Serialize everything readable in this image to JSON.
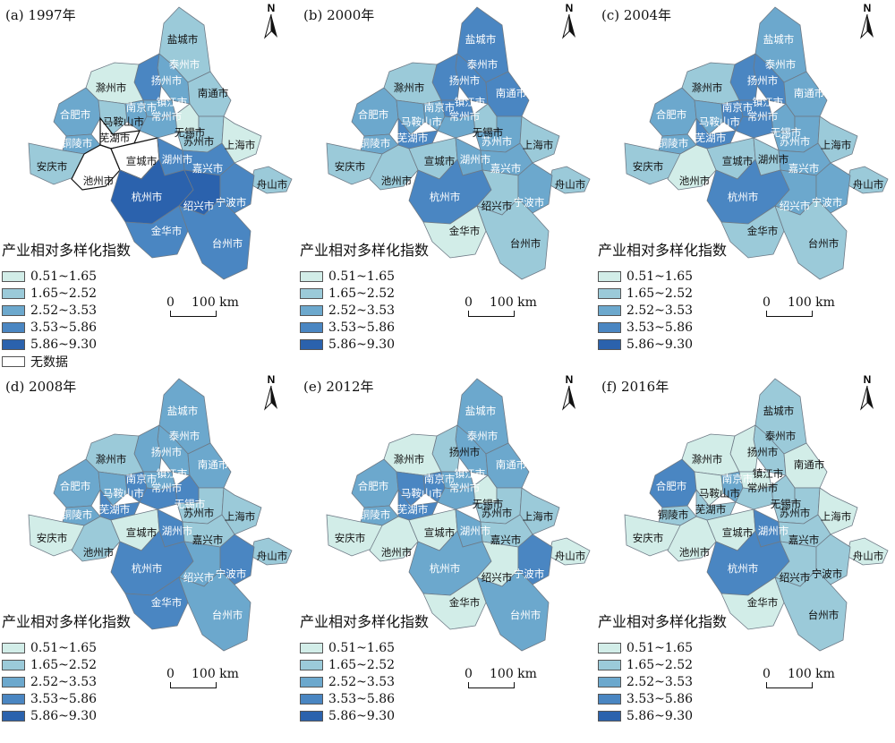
{
  "legend": {
    "title": "产业相对多样化指数",
    "classes": [
      {
        "label": "0.51~1.65",
        "color": "#d2ede8"
      },
      {
        "label": "1.65~2.52",
        "color": "#9bcad9"
      },
      {
        "label": "2.52~3.53",
        "color": "#6ca8cd"
      },
      {
        "label": "3.53~5.86",
        "color": "#4a86c2"
      },
      {
        "label": "5.86~9.30",
        "color": "#2b62ad"
      }
    ],
    "nodata_label": "无数据",
    "nodata_color": "#ffffff"
  },
  "scale": {
    "zero": "0",
    "label": "100 km"
  },
  "north_label": "N",
  "panels": [
    {
      "title": "(a) 1997年",
      "show_nodata": true,
      "classes": {
        "yancheng": 1,
        "taizhou_js": 2,
        "yangzhou": 3,
        "chuzhou": 0,
        "nantong": 1,
        "hefei": 2,
        "maanshan": 1,
        "nanjing": 2,
        "zhenjiang": 2,
        "changzhou": 2,
        "wuxi": 0,
        "tongling": 2,
        "wuhu": -1,
        "suzhou": 1,
        "shanghai": 0,
        "anqing": 1,
        "chizhou": -1,
        "xuancheng": -1,
        "huzhou": 3,
        "jiaxing": 3,
        "zhoushan": 1,
        "hangzhou": 4,
        "shaoxing": 4,
        "ningbo": 3,
        "jinhua": 3,
        "taizhou_zj": 3
      }
    },
    {
      "title": "(b) 2000年",
      "show_nodata": false,
      "classes": {
        "yancheng": 3,
        "taizhou_js": 3,
        "yangzhou": 3,
        "chuzhou": 1,
        "nantong": 3,
        "hefei": 2,
        "maanshan": 2,
        "nanjing": 2,
        "zhenjiang": 3,
        "changzhou": 2,
        "wuxi": 1,
        "tongling": 2,
        "wuhu": 3,
        "suzhou": 2,
        "shanghai": 1,
        "anqing": 1,
        "chizhou": 1,
        "xuancheng": 1,
        "huzhou": 2,
        "jiaxing": 2,
        "zhoushan": 1,
        "hangzhou": 3,
        "shaoxing": 1,
        "ningbo": 2,
        "jinhua": 0,
        "taizhou_zj": 1
      }
    },
    {
      "title": "(c) 2004年",
      "show_nodata": false,
      "classes": {
        "yancheng": 2,
        "taizhou_js": 3,
        "yangzhou": 3,
        "chuzhou": 1,
        "nantong": 2,
        "hefei": 2,
        "maanshan": 2,
        "nanjing": 3,
        "zhenjiang": 3,
        "changzhou": 3,
        "wuxi": 2,
        "tongling": 2,
        "wuhu": 3,
        "suzhou": 2,
        "shanghai": 1,
        "anqing": 1,
        "chizhou": 0,
        "xuancheng": 1,
        "huzhou": 1,
        "jiaxing": 2,
        "zhoushan": 1,
        "hangzhou": 3,
        "shaoxing": 2,
        "ningbo": 2,
        "jinhua": 1,
        "taizhou_zj": 1
      }
    },
    {
      "title": "(d) 2008年",
      "show_nodata": false,
      "classes": {
        "yancheng": 2,
        "taizhou_js": 2,
        "yangzhou": 2,
        "chuzhou": 1,
        "nantong": 2,
        "hefei": 2,
        "maanshan": 2,
        "nanjing": 3,
        "zhenjiang": 2,
        "changzhou": 3,
        "wuxi": 3,
        "tongling": 2,
        "wuhu": 3,
        "suzhou": 1,
        "shanghai": 1,
        "anqing": 0,
        "chizhou": 1,
        "xuancheng": 0,
        "huzhou": 3,
        "jiaxing": 1,
        "zhoushan": 1,
        "hangzhou": 3,
        "shaoxing": 2,
        "ningbo": 3,
        "jinhua": 3,
        "taizhou_zj": 2
      }
    },
    {
      "title": "(e) 2012年",
      "show_nodata": false,
      "classes": {
        "yancheng": 2,
        "taizhou_js": 2,
        "yangzhou": 1,
        "chuzhou": 0,
        "nantong": 2,
        "hefei": 2,
        "maanshan": 3,
        "nanjing": 3,
        "zhenjiang": 2,
        "changzhou": 2,
        "wuxi": 0,
        "tongling": 2,
        "wuhu": 3,
        "suzhou": 1,
        "shanghai": 1,
        "anqing": 0,
        "chizhou": 0,
        "xuancheng": 0,
        "huzhou": 2,
        "jiaxing": 1,
        "zhoushan": 0,
        "hangzhou": 2,
        "shaoxing": 0,
        "ningbo": 3,
        "jinhua": 0,
        "taizhou_zj": 2
      }
    },
    {
      "title": "(f) 2016年",
      "show_nodata": false,
      "classes": {
        "yancheng": 1,
        "taizhou_js": 1,
        "yangzhou": 0,
        "chuzhou": 0,
        "nantong": 0,
        "hefei": 3,
        "maanshan": 0,
        "nanjing": 2,
        "zhenjiang": 0,
        "changzhou": 1,
        "wuxi": 1,
        "tongling": 1,
        "wuhu": 1,
        "suzhou": 1,
        "shanghai": 0,
        "anqing": 0,
        "chizhou": 0,
        "xuancheng": 0,
        "huzhou": 3,
        "jiaxing": 1,
        "zhoushan": 0,
        "hangzhou": 3,
        "shaoxing": 1,
        "ningbo": 1,
        "jinhua": 0,
        "taizhou_zj": 1
      }
    }
  ],
  "cities": [
    {
      "id": "yancheng",
      "name": "盐城市"
    },
    {
      "id": "taizhou_js",
      "name": "泰州市"
    },
    {
      "id": "yangzhou",
      "name": "扬州市"
    },
    {
      "id": "chuzhou",
      "name": "滁州市"
    },
    {
      "id": "nantong",
      "name": "南通市"
    },
    {
      "id": "hefei",
      "name": "合肥市"
    },
    {
      "id": "maanshan",
      "name": "马鞍山市"
    },
    {
      "id": "nanjing",
      "name": "南京市"
    },
    {
      "id": "zhenjiang",
      "name": "镇江市"
    },
    {
      "id": "changzhou",
      "name": "常州市"
    },
    {
      "id": "wuxi",
      "name": "无锡市"
    },
    {
      "id": "tongling",
      "name": "铜陵市"
    },
    {
      "id": "wuhu",
      "name": "芜湖市"
    },
    {
      "id": "suzhou",
      "name": "苏州市"
    },
    {
      "id": "shanghai",
      "name": "上海市"
    },
    {
      "id": "anqing",
      "name": "安庆市"
    },
    {
      "id": "chizhou",
      "name": "池州市"
    },
    {
      "id": "xuancheng",
      "name": "宣城市"
    },
    {
      "id": "huzhou",
      "name": "湖州市"
    },
    {
      "id": "jiaxing",
      "name": "嘉兴市"
    },
    {
      "id": "zhoushan",
      "name": "舟山市"
    },
    {
      "id": "hangzhou",
      "name": "杭州市"
    },
    {
      "id": "shaoxing",
      "name": "绍兴市"
    },
    {
      "id": "ningbo",
      "name": "宁波市"
    },
    {
      "id": "jinhua",
      "name": "金华市"
    },
    {
      "id": "taizhou_zj",
      "name": "台州市"
    }
  ]
}
